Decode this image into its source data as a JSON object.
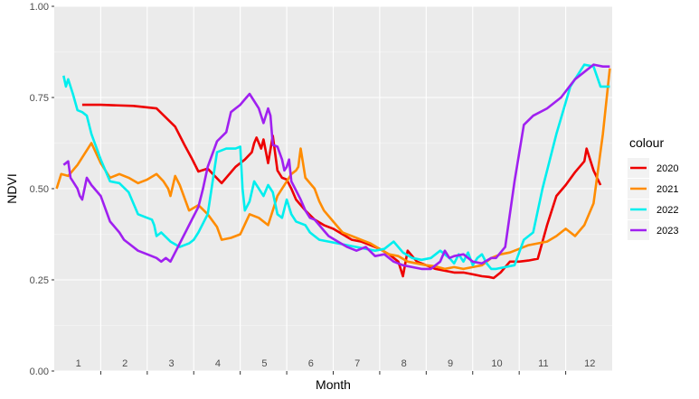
{
  "chart_data": {
    "type": "line",
    "title": "",
    "xlabel": "Month",
    "ylabel": "NDVI",
    "ylim": [
      0,
      1
    ],
    "xlim": [
      0.5,
      12.5
    ],
    "y_ticks": [
      0,
      0.25,
      0.5,
      0.75,
      1
    ],
    "y_tick_labels": [
      "0.00",
      "0.25",
      "0.50",
      "0.75",
      "1.00"
    ],
    "month_labels": [
      "1",
      "2",
      "3",
      "4",
      "5",
      "6",
      "7",
      "8",
      "9",
      "10",
      "11",
      "12"
    ],
    "grid": true,
    "legend": {
      "title": "colour",
      "placement": "right"
    },
    "series": [
      {
        "name": "2020",
        "color": "#ee0000",
        "x": [
          1.1,
          1.5,
          2.2,
          2.7,
          3.1,
          3.3,
          3.45,
          3.6,
          3.8,
          4.1,
          4.4,
          4.6,
          4.75,
          4.8,
          4.85,
          4.95,
          5.0,
          5.1,
          5.2,
          5.3,
          5.4,
          5.5,
          5.6,
          5.7,
          5.9,
          6.1,
          6.3,
          6.5,
          6.7,
          6.9,
          7.1,
          7.3,
          7.5,
          7.7,
          7.9,
          8.0,
          8.1,
          8.3,
          8.5,
          8.7,
          8.9,
          9.1,
          9.3,
          9.5,
          9.7,
          9.85,
          9.95,
          10.1,
          10.3,
          10.5,
          10.7,
          10.9,
          11.1,
          11.3,
          11.5,
          11.7,
          11.9,
          11.95,
          12.1,
          12.25
        ],
        "y": [
          0.73,
          0.73,
          0.727,
          0.72,
          0.67,
          0.62,
          0.585,
          0.547,
          0.555,
          0.515,
          0.56,
          0.58,
          0.6,
          0.625,
          0.64,
          0.61,
          0.635,
          0.57,
          0.645,
          0.55,
          0.53,
          0.525,
          0.5,
          0.47,
          0.44,
          0.415,
          0.4,
          0.39,
          0.375,
          0.36,
          0.355,
          0.345,
          0.335,
          0.32,
          0.3,
          0.26,
          0.33,
          0.3,
          0.29,
          0.28,
          0.275,
          0.27,
          0.27,
          0.265,
          0.26,
          0.258,
          0.255,
          0.27,
          0.3,
          0.3,
          0.303,
          0.308,
          0.4,
          0.48,
          0.51,
          0.545,
          0.575,
          0.61,
          0.55,
          0.51
        ]
      },
      {
        "name": "2021",
        "color": "#ff8c00",
        "x": [
          0.55,
          0.65,
          0.8,
          1.0,
          1.15,
          1.3,
          1.5,
          1.7,
          1.9,
          2.1,
          2.3,
          2.5,
          2.7,
          2.85,
          2.95,
          3.0,
          3.1,
          3.2,
          3.4,
          3.6,
          3.8,
          4.0,
          4.1,
          4.3,
          4.5,
          4.7,
          4.9,
          5.1,
          5.3,
          5.5,
          5.6,
          5.65,
          5.7,
          5.75,
          5.8,
          5.9,
          6.1,
          6.2,
          6.3,
          6.5,
          6.7,
          6.9,
          7.1,
          7.3,
          7.5,
          7.7,
          7.9,
          8.1,
          8.3,
          8.5,
          8.7,
          8.9,
          9.1,
          9.3,
          9.5,
          9.7,
          9.9,
          10.1,
          10.3,
          10.5,
          10.7,
          10.9,
          11.1,
          11.3,
          11.5,
          11.7,
          11.9,
          12.1,
          12.3,
          12.45
        ],
        "y": [
          0.5,
          0.54,
          0.535,
          0.565,
          0.595,
          0.625,
          0.57,
          0.53,
          0.54,
          0.53,
          0.515,
          0.525,
          0.54,
          0.52,
          0.5,
          0.48,
          0.535,
          0.51,
          0.44,
          0.455,
          0.43,
          0.395,
          0.36,
          0.365,
          0.375,
          0.43,
          0.42,
          0.4,
          0.48,
          0.52,
          0.54,
          0.545,
          0.55,
          0.56,
          0.61,
          0.53,
          0.5,
          0.465,
          0.44,
          0.41,
          0.38,
          0.37,
          0.36,
          0.35,
          0.335,
          0.32,
          0.315,
          0.3,
          0.295,
          0.29,
          0.287,
          0.28,
          0.285,
          0.28,
          0.285,
          0.29,
          0.31,
          0.32,
          0.325,
          0.335,
          0.345,
          0.35,
          0.355,
          0.37,
          0.39,
          0.37,
          0.4,
          0.46,
          0.65,
          0.83
        ]
      },
      {
        "name": "2022",
        "color": "#00eeee",
        "x": [
          0.7,
          0.75,
          0.8,
          0.9,
          1.0,
          1.1,
          1.2,
          1.3,
          1.5,
          1.7,
          1.9,
          2.1,
          2.3,
          2.5,
          2.6,
          2.65,
          2.7,
          2.8,
          3.0,
          3.2,
          3.4,
          3.5,
          3.6,
          3.8,
          4.0,
          4.2,
          4.4,
          4.5,
          4.55,
          4.6,
          4.7,
          4.8,
          5.0,
          5.1,
          5.2,
          5.3,
          5.4,
          5.5,
          5.6,
          5.7,
          5.9,
          6.0,
          6.2,
          6.4,
          6.6,
          6.8,
          7.0,
          7.2,
          7.4,
          7.6,
          7.8,
          8.0,
          8.2,
          8.4,
          8.6,
          8.8,
          9.0,
          9.1,
          9.2,
          9.3,
          9.4,
          9.5,
          9.6,
          9.7,
          9.8,
          9.9,
          10.0,
          10.2,
          10.4,
          10.6,
          10.8,
          11.0,
          11.3,
          11.6,
          11.9,
          12.1,
          12.25,
          12.45
        ],
        "y": [
          0.81,
          0.78,
          0.8,
          0.76,
          0.715,
          0.71,
          0.7,
          0.65,
          0.58,
          0.52,
          0.515,
          0.49,
          0.43,
          0.42,
          0.415,
          0.4,
          0.37,
          0.38,
          0.355,
          0.34,
          0.35,
          0.36,
          0.38,
          0.43,
          0.6,
          0.61,
          0.61,
          0.615,
          0.5,
          0.44,
          0.465,
          0.52,
          0.48,
          0.51,
          0.49,
          0.43,
          0.42,
          0.47,
          0.43,
          0.41,
          0.4,
          0.38,
          0.36,
          0.355,
          0.35,
          0.345,
          0.34,
          0.335,
          0.33,
          0.335,
          0.355,
          0.325,
          0.31,
          0.305,
          0.31,
          0.33,
          0.31,
          0.295,
          0.32,
          0.3,
          0.325,
          0.29,
          0.31,
          0.32,
          0.295,
          0.28,
          0.28,
          0.285,
          0.29,
          0.36,
          0.38,
          0.5,
          0.65,
          0.78,
          0.84,
          0.835,
          0.78,
          0.78
        ]
      },
      {
        "name": "2023",
        "color": "#a020f0",
        "x": [
          0.7,
          0.75,
          0.8,
          0.85,
          0.9,
          1.0,
          1.05,
          1.1,
          1.2,
          1.3,
          1.5,
          1.7,
          1.9,
          2.0,
          2.1,
          2.3,
          2.5,
          2.7,
          2.75,
          2.8,
          2.9,
          3.0,
          3.2,
          3.4,
          3.6,
          3.7,
          3.8,
          4.0,
          4.2,
          4.3,
          4.4,
          4.5,
          4.6,
          4.7,
          4.8,
          4.9,
          5.0,
          5.1,
          5.15,
          5.2,
          5.3,
          5.4,
          5.45,
          5.5,
          5.55,
          5.6,
          5.7,
          5.8,
          5.9,
          6.0,
          6.1,
          6.2,
          6.3,
          6.4,
          6.6,
          6.8,
          7.0,
          7.2,
          7.4,
          7.6,
          7.8,
          8.0,
          8.2,
          8.4,
          8.6,
          8.8,
          8.9,
          9.0,
          9.1,
          9.3,
          9.5,
          9.7,
          9.9,
          10.0,
          10.2,
          10.4,
          10.6,
          10.8,
          11.1,
          11.4,
          11.7,
          11.9,
          12.1,
          12.3,
          12.45
        ],
        "y": [
          0.565,
          0.57,
          0.575,
          0.53,
          0.52,
          0.5,
          0.48,
          0.47,
          0.53,
          0.51,
          0.48,
          0.41,
          0.38,
          0.36,
          0.35,
          0.33,
          0.32,
          0.31,
          0.305,
          0.3,
          0.31,
          0.3,
          0.35,
          0.4,
          0.45,
          0.5,
          0.56,
          0.63,
          0.655,
          0.71,
          0.72,
          0.73,
          0.745,
          0.76,
          0.74,
          0.72,
          0.68,
          0.72,
          0.7,
          0.62,
          0.615,
          0.58,
          0.55,
          0.56,
          0.58,
          0.52,
          0.495,
          0.47,
          0.44,
          0.42,
          0.415,
          0.4,
          0.385,
          0.37,
          0.355,
          0.34,
          0.33,
          0.34,
          0.315,
          0.32,
          0.3,
          0.29,
          0.285,
          0.28,
          0.28,
          0.3,
          0.33,
          0.31,
          0.315,
          0.32,
          0.3,
          0.295,
          0.31,
          0.31,
          0.34,
          0.52,
          0.675,
          0.7,
          0.72,
          0.75,
          0.8,
          0.82,
          0.84,
          0.835,
          0.835
        ]
      }
    ]
  }
}
